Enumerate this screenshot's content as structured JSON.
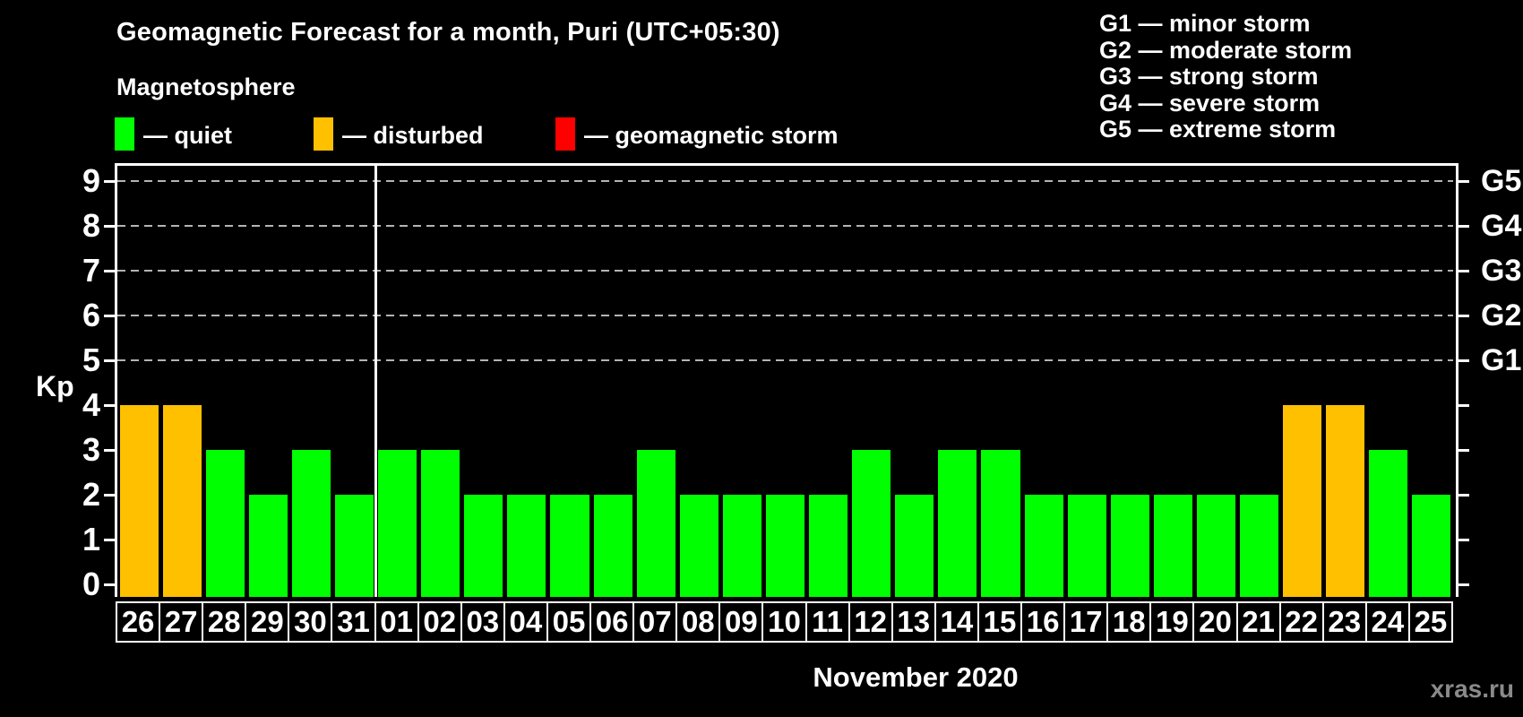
{
  "chart_data": {
    "type": "bar",
    "title": "Geomagnetic Forecast for a month, Puri (UTC+05:30)",
    "subtitle": "Magnetosphere",
    "ylabel": "Kp",
    "month_label": "November 2020",
    "watermark": "xras.ru",
    "ylim": [
      0,
      9.4
    ],
    "y_ticks": [
      0,
      1,
      2,
      3,
      4,
      5,
      6,
      7,
      8,
      9
    ],
    "grid": "dashed horizontal lines at Kp 5-9 only",
    "legend_position": "top-left row",
    "legend": [
      {
        "label": "— quiet",
        "state": "quiet",
        "color": "#00ff00",
        "x": 128
      },
      {
        "label": "— disturbed",
        "state": "disturbed",
        "color": "#ffc000",
        "x": 350
      },
      {
        "label": "— geomagnetic storm",
        "state": "storm",
        "color": "#ff0000",
        "x": 620
      }
    ],
    "g_scale_legend": [
      "G1 — minor storm",
      "G2 — moderate storm",
      "G3 — strong storm",
      "G4 — severe storm",
      "G5 — extreme storm"
    ],
    "right_axis": [
      {
        "label": "G1",
        "kp": 5
      },
      {
        "label": "G2",
        "kp": 6
      },
      {
        "label": "G3",
        "kp": 7
      },
      {
        "label": "G4",
        "kp": 8
      },
      {
        "label": "G5",
        "kp": 9
      }
    ],
    "divider_after_index": 5,
    "categories": [
      "26",
      "27",
      "28",
      "29",
      "30",
      "31",
      "01",
      "02",
      "03",
      "04",
      "05",
      "06",
      "07",
      "08",
      "09",
      "10",
      "11",
      "12",
      "13",
      "14",
      "15",
      "16",
      "17",
      "18",
      "19",
      "20",
      "21",
      "22",
      "23",
      "24",
      "25"
    ],
    "days": [
      {
        "day": "26",
        "kp": 4,
        "state": "disturbed"
      },
      {
        "day": "27",
        "kp": 4,
        "state": "disturbed"
      },
      {
        "day": "28",
        "kp": 3,
        "state": "quiet"
      },
      {
        "day": "29",
        "kp": 2,
        "state": "quiet"
      },
      {
        "day": "30",
        "kp": 3,
        "state": "quiet"
      },
      {
        "day": "31",
        "kp": 2,
        "state": "quiet"
      },
      {
        "day": "01",
        "kp": 3,
        "state": "quiet"
      },
      {
        "day": "02",
        "kp": 3,
        "state": "quiet"
      },
      {
        "day": "03",
        "kp": 2,
        "state": "quiet"
      },
      {
        "day": "04",
        "kp": 2,
        "state": "quiet"
      },
      {
        "day": "05",
        "kp": 2,
        "state": "quiet"
      },
      {
        "day": "06",
        "kp": 2,
        "state": "quiet"
      },
      {
        "day": "07",
        "kp": 3,
        "state": "quiet"
      },
      {
        "day": "08",
        "kp": 2,
        "state": "quiet"
      },
      {
        "day": "09",
        "kp": 2,
        "state": "quiet"
      },
      {
        "day": "10",
        "kp": 2,
        "state": "quiet"
      },
      {
        "day": "11",
        "kp": 2,
        "state": "quiet"
      },
      {
        "day": "12",
        "kp": 3,
        "state": "quiet"
      },
      {
        "day": "13",
        "kp": 2,
        "state": "quiet"
      },
      {
        "day": "14",
        "kp": 3,
        "state": "quiet"
      },
      {
        "day": "15",
        "kp": 3,
        "state": "quiet"
      },
      {
        "day": "16",
        "kp": 2,
        "state": "quiet"
      },
      {
        "day": "17",
        "kp": 2,
        "state": "quiet"
      },
      {
        "day": "18",
        "kp": 2,
        "state": "quiet"
      },
      {
        "day": "19",
        "kp": 2,
        "state": "quiet"
      },
      {
        "day": "20",
        "kp": 2,
        "state": "quiet"
      },
      {
        "day": "21",
        "kp": 2,
        "state": "quiet"
      },
      {
        "day": "22",
        "kp": 4,
        "state": "disturbed"
      },
      {
        "day": "23",
        "kp": 4,
        "state": "disturbed"
      },
      {
        "day": "24",
        "kp": 3,
        "state": "quiet"
      },
      {
        "day": "25",
        "kp": 2,
        "state": "quiet"
      }
    ],
    "colors": {
      "quiet": "#00ff00",
      "disturbed": "#ffc000",
      "storm": "#ff0000",
      "axis": "#ffffff",
      "grid": "#b4b4b4",
      "background": "#000000",
      "watermark": "#8a8a8a"
    }
  }
}
